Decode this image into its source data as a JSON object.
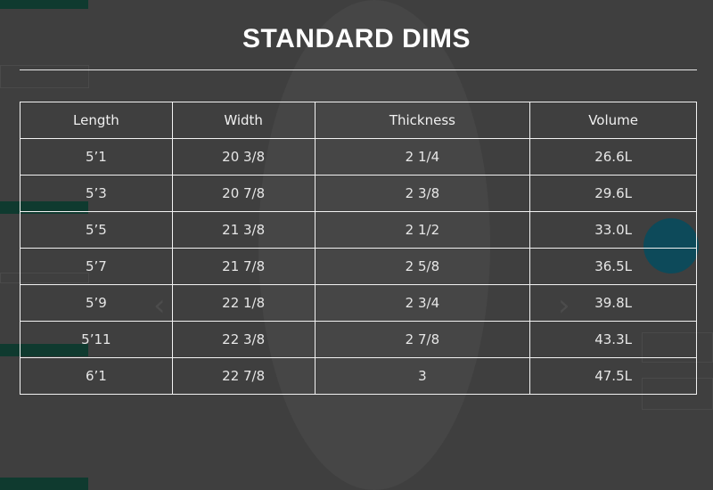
{
  "modal": {
    "title": "STANDARD DIMS",
    "columns": [
      "Length",
      "Width",
      "Thickness",
      "Volume"
    ],
    "rows": [
      [
        "5’1",
        "20 3/8",
        "2 1/4",
        "26.6L"
      ],
      [
        "5’3",
        "20 7/8",
        "2 3/8",
        "29.6L"
      ],
      [
        "5’5",
        "21 3/8",
        "2 1/2",
        "33.0L"
      ],
      [
        "5’7",
        "21 7/8",
        "2 5/8",
        "36.5L"
      ],
      [
        "5’9",
        "22 1/8",
        "2 3/4",
        "39.8L"
      ],
      [
        "5’11",
        "22 3/8",
        "2 7/8",
        "43.3L"
      ],
      [
        "6’1",
        "22 7/8",
        "3",
        "47.5L"
      ]
    ]
  },
  "colors": {
    "overlay": "#3f3f3f",
    "accent_green": "#0f3a2f",
    "accent_blue": "#0d4a5a"
  }
}
